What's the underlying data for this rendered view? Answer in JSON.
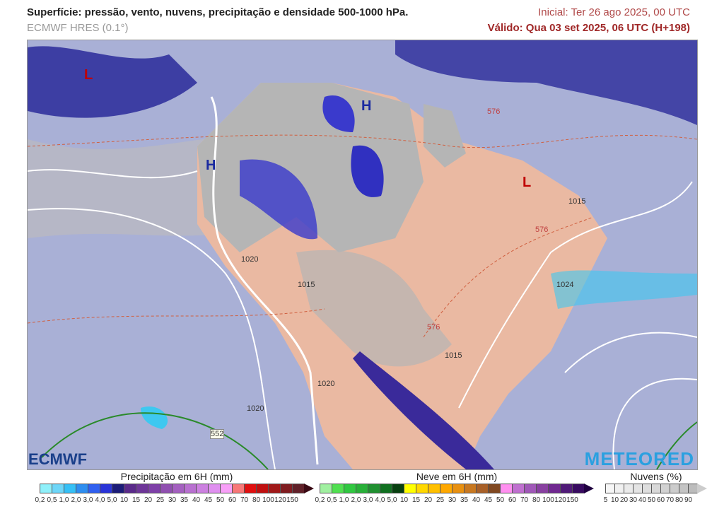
{
  "header": {
    "title": "Superfície: pressão, vento, nuvens, precipitação e densidade 500-1000 hPa.",
    "model": "ECMWF HRES (0.1°)",
    "initial": "Inicial: Ter 26 ago 2025, 00 UTC",
    "valid": "Válido: Qua 03 set 2025, 06 UTC (H+198)"
  },
  "map": {
    "pressure_centers": [
      {
        "label": "L",
        "color": "#c00000"
      },
      {
        "label": "H",
        "color": "#1a2aa0"
      },
      {
        "label": "H",
        "color": "#1a2aa0"
      },
      {
        "label": "L",
        "color": "#c00000"
      }
    ],
    "isobar_labels": [
      "1015",
      "1020",
      "1024",
      "1015",
      "1020",
      "1020",
      "1015"
    ],
    "thickness_labels": [
      "576",
      "576",
      "576",
      "552"
    ],
    "colors": {
      "ocean": "#a9b0d6",
      "land_clear": "#eab9a2",
      "clouds": "#b8b8b8",
      "rain_heavy": "#2a2a9a",
      "rain_light": "#3ec8f0"
    }
  },
  "logos": {
    "left": "ECMWF",
    "right": "METEORED"
  },
  "legends": {
    "precip": {
      "title": "Precipitação em 6H (mm)",
      "ticks": [
        "0,2",
        "0,5",
        "1,0",
        "2,0",
        "3,0",
        "4,0",
        "5,0",
        "10",
        "15",
        "20",
        "25",
        "30",
        "35",
        "40",
        "45",
        "50",
        "60",
        "70",
        "80",
        "100",
        "120",
        "150"
      ],
      "colors": [
        "#8ff0fa",
        "#6dd6f8",
        "#35c0f6",
        "#2e8ef0",
        "#3060f0",
        "#2a34d8",
        "#1c1c78",
        "#5a2a8a",
        "#6e3698",
        "#7e40a8",
        "#9050b0",
        "#a460c0",
        "#b870d0",
        "#cc80e0",
        "#e090f0",
        "#f8a0f8",
        "#f87878",
        "#e01010",
        "#c01010",
        "#a01818",
        "#801c20",
        "#602028"
      ],
      "arrow": "#3a0a14"
    },
    "snow": {
      "title": "Neve em 6H (mm)",
      "ticks": [
        "0,2",
        "0,5",
        "1,0",
        "2,0",
        "3,0",
        "4,0",
        "5,0",
        "10",
        "15",
        "20",
        "25",
        "30",
        "35",
        "40",
        "45",
        "50",
        "60",
        "70",
        "80",
        "100",
        "120",
        "150"
      ],
      "colors": [
        "#a0f0a0",
        "#50e050",
        "#30c840",
        "#28b038",
        "#209030",
        "#107020",
        "#084010",
        "#ffff00",
        "#ffd800",
        "#ffc000",
        "#ffa800",
        "#e89010",
        "#c87820",
        "#a86028",
        "#804820",
        "#ff90f0",
        "#c070d0",
        "#a058b8",
        "#8840a0",
        "#702890",
        "#501a78",
        "#380a60"
      ],
      "arrow": "#200040"
    },
    "clouds": {
      "title": "Nuvens (%)",
      "ticks": [
        "5",
        "10",
        "20",
        "30",
        "40",
        "50",
        "60",
        "70",
        "80",
        "90"
      ],
      "colors": [
        "#f6f6f6",
        "#f0f0f0",
        "#eaeaea",
        "#e4e4e4",
        "#dedede",
        "#d8d8d8",
        "#d2d2d2",
        "#cccccc",
        "#c4c4c4",
        "#bcbcbc"
      ],
      "arrow": "#cccccc"
    }
  }
}
